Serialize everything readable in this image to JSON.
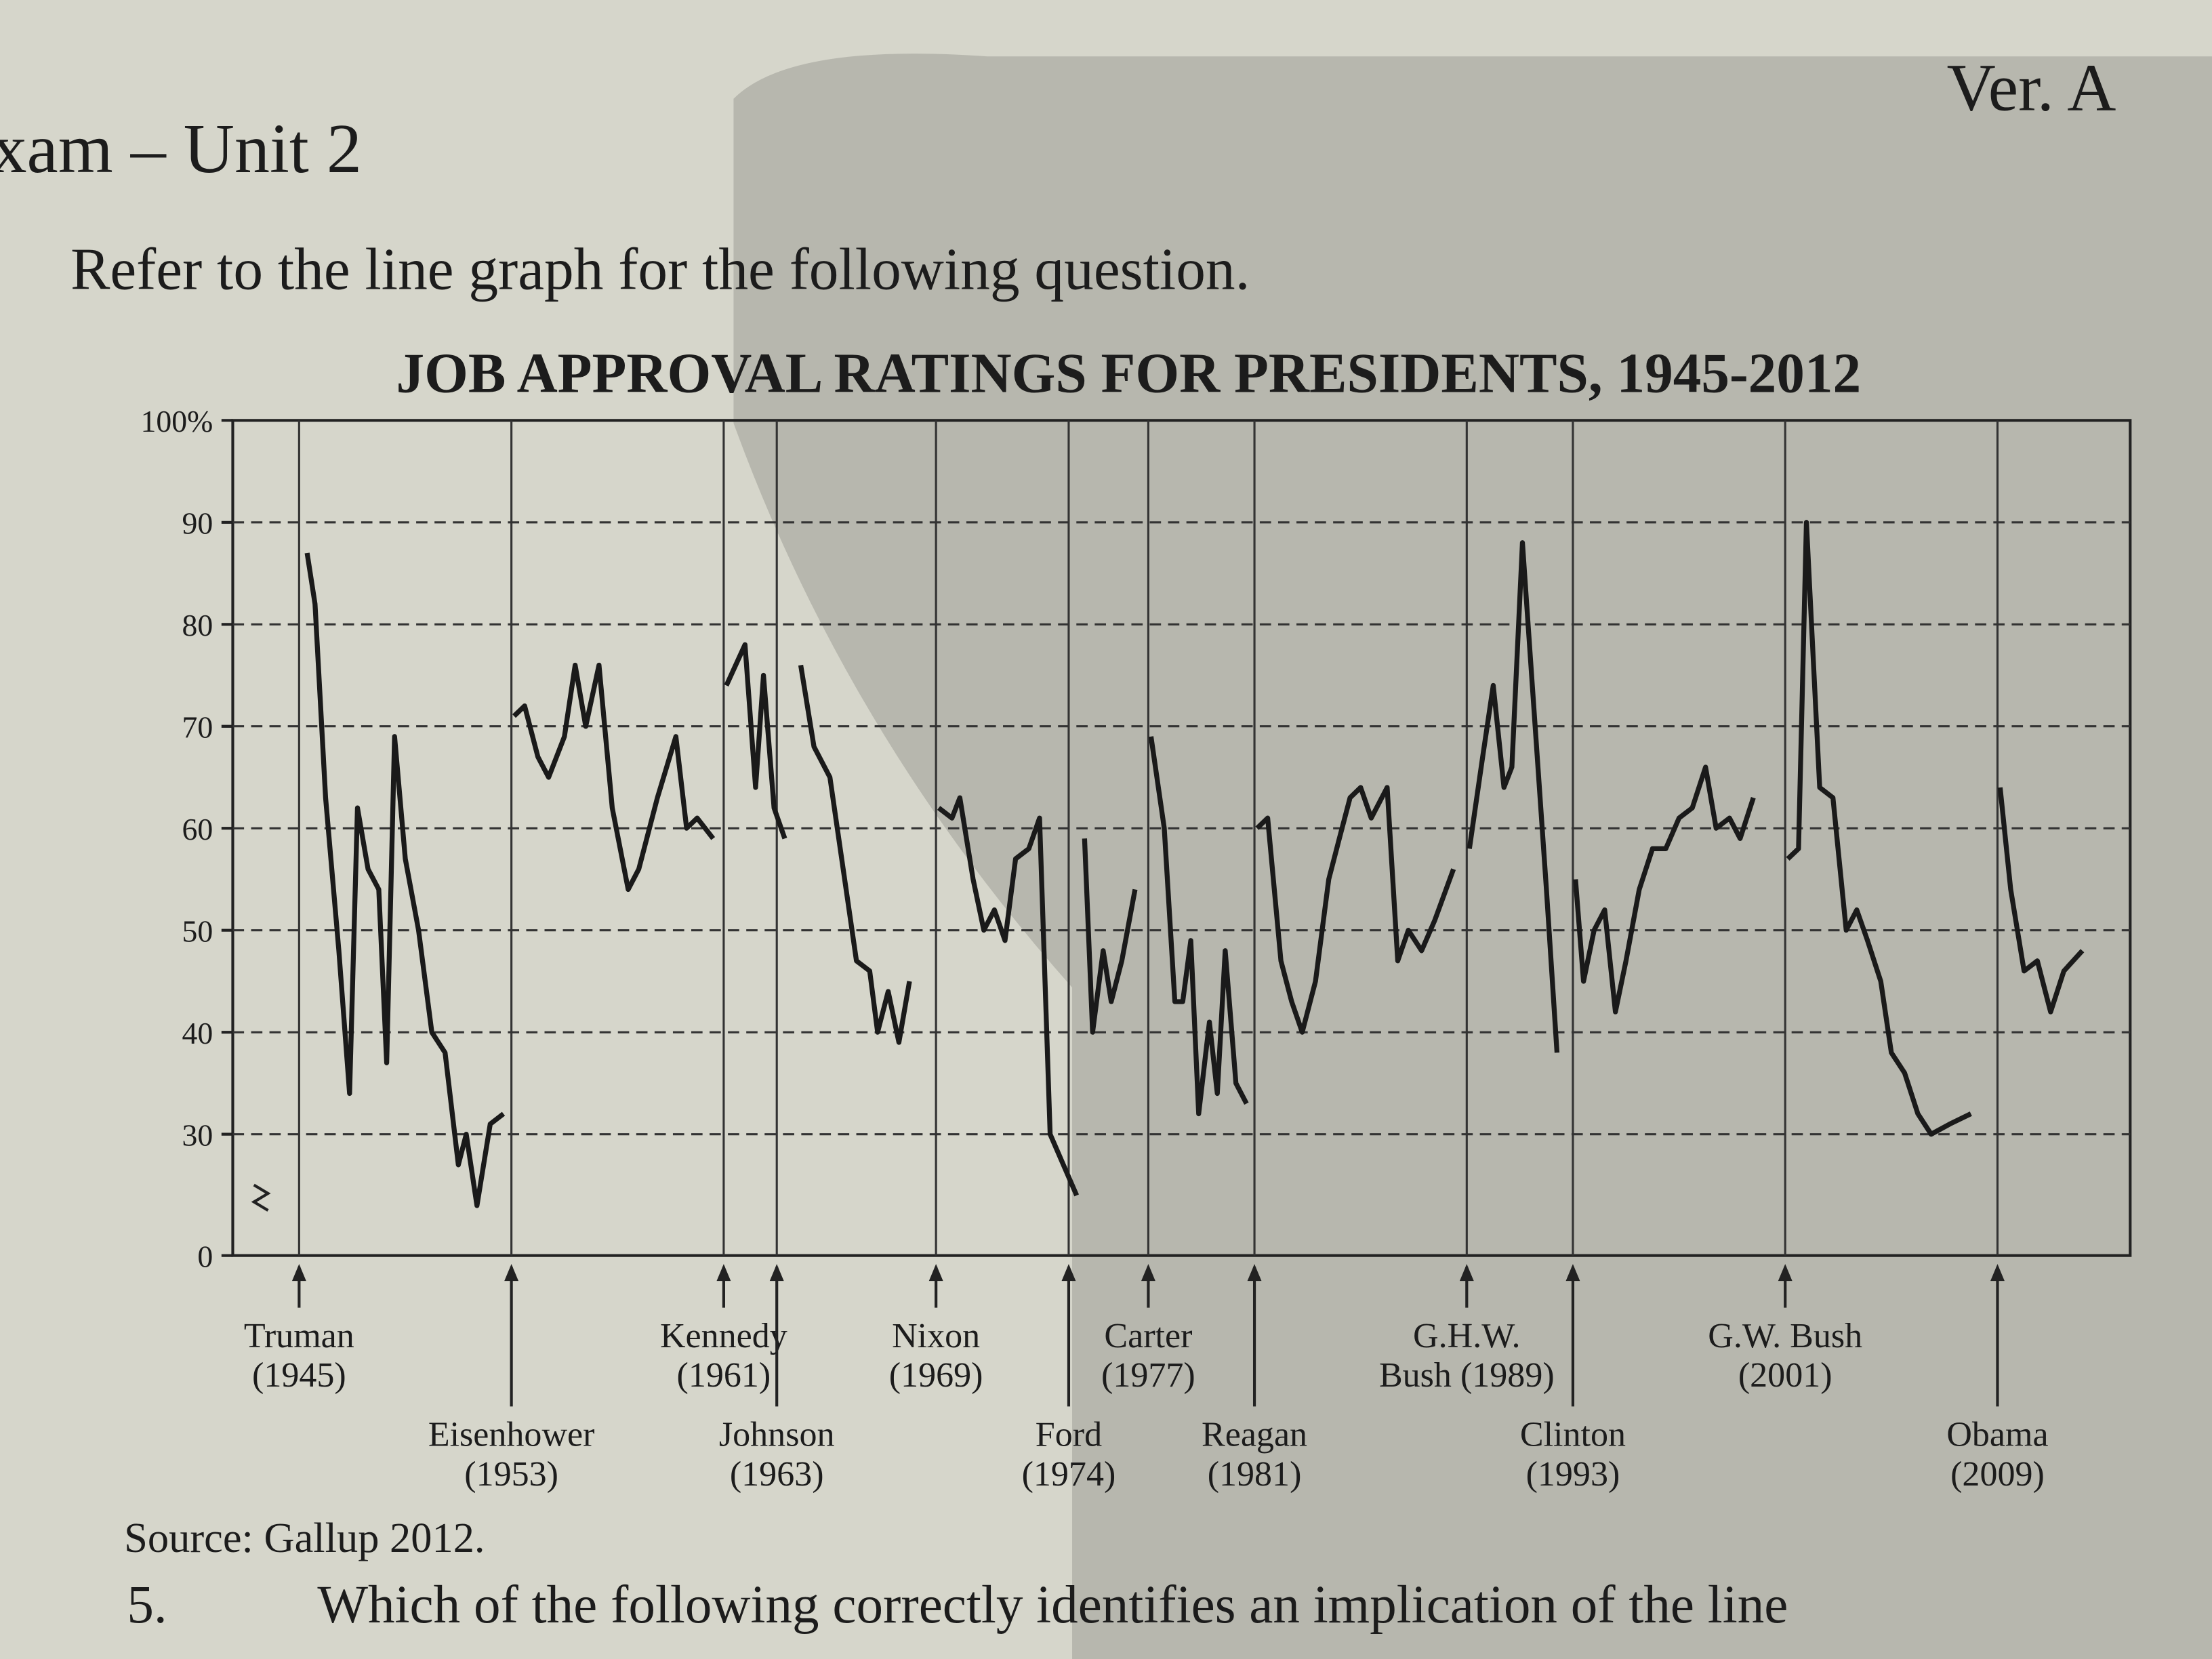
{
  "page": {
    "exam": "xam – Unit 2",
    "version": "Ver. A",
    "instruction": "Refer to the line graph for the following question.",
    "source": "Source: Gallup 2012.",
    "question_number": "5.",
    "question": "Which of the following correctly identifies an implication of the line"
  },
  "chart_data": {
    "type": "line",
    "title": "JOB APPROVAL RATINGS FOR PRESIDENTS, 1945-2012",
    "color": "#1a1a1a",
    "xlim": [
      1942.5,
      2014
    ],
    "ylim": [
      0,
      100
    ],
    "axis_break": [
      0,
      30
    ],
    "yticks": [
      0,
      30,
      40,
      50,
      60,
      70,
      80,
      90,
      {
        "value": 100,
        "label": "100%"
      }
    ],
    "grid": true,
    "x": [
      1945.3,
      1945.6,
      1946,
      1946.5,
      1946.9,
      1947.2,
      1947.6,
      1948,
      1948.3,
      1948.6,
      1949,
      1949.5,
      1950,
      1950.5,
      1951,
      1951.3,
      1951.7,
      1952.2,
      1952.7,
      null,
      1953.1,
      1953.5,
      1954,
      1954.4,
      1955,
      1955.4,
      1955.8,
      1956.3,
      1956.8,
      1957.4,
      1957.8,
      1958.5,
      1959.2,
      1959.6,
      1960,
      1960.6,
      null,
      1961.1,
      1961.8,
      1962.2,
      1962.5,
      1962.9,
      1963.3,
      null,
      1963.9,
      1964.4,
      1965,
      1965.5,
      1966,
      1966.5,
      1966.8,
      1967.2,
      1967.6,
      1968,
      null,
      1969.1,
      1969.6,
      1969.9,
      1970.4,
      1970.8,
      1971.2,
      1971.6,
      1972,
      1972.5,
      1972.9,
      1973.3,
      1973.8,
      1974.3,
      null,
      1974.6,
      1974.9,
      1975.3,
      1975.6,
      1976,
      1976.5,
      null,
      1977.1,
      1977.6,
      1978,
      1978.3,
      1978.6,
      1978.9,
      1979.3,
      1979.6,
      1979.9,
      1980.3,
      1980.7,
      null,
      1981.1,
      1981.5,
      1982,
      1982.4,
      1982.8,
      1983.3,
      1983.8,
      1984.2,
      1984.6,
      1985,
      1985.4,
      1986,
      1986.4,
      1986.8,
      1987.3,
      1987.8,
      1988.5,
      null,
      1989.1,
      1989.6,
      1990,
      1990.4,
      1990.7,
      1991.1,
      1991.5,
      1992,
      1992.4,
      null,
      1993.1,
      1993.4,
      1993.8,
      1994.2,
      1994.6,
      1995,
      1995.5,
      1996,
      1996.5,
      1997,
      1997.5,
      1998,
      1998.4,
      1998.9,
      1999.3,
      1999.8,
      null,
      2001.1,
      2001.5,
      2001.8,
      2002.3,
      2002.8,
      2003.3,
      2003.7,
      2004.1,
      2004.6,
      2005,
      2005.5,
      2006,
      2006.5,
      2007.2,
      2008,
      null,
      2009.1,
      2009.5,
      2010,
      2010.5,
      2011,
      2011.5,
      2012.2
    ],
    "values": [
      87,
      82,
      63,
      48,
      34,
      62,
      56,
      54,
      37,
      69,
      57,
      50,
      40,
      38,
      27,
      30,
      23,
      31,
      32,
      null,
      71,
      72,
      67,
      65,
      69,
      76,
      70,
      76,
      62,
      54,
      56,
      63,
      69,
      60,
      61,
      59,
      null,
      74,
      78,
      64,
      75,
      62,
      59,
      null,
      76,
      68,
      65,
      56,
      47,
      46,
      40,
      44,
      39,
      45,
      null,
      62,
      61,
      63,
      55,
      50,
      52,
      49,
      57,
      58,
      61,
      30,
      27,
      24,
      null,
      59,
      40,
      48,
      43,
      47,
      54,
      null,
      69,
      60,
      43,
      43,
      49,
      32,
      41,
      34,
      48,
      35,
      33,
      null,
      60,
      61,
      47,
      43,
      40,
      45,
      55,
      59,
      63,
      64,
      61,
      64,
      47,
      50,
      48,
      51,
      56,
      null,
      58,
      67,
      74,
      64,
      66,
      88,
      73,
      54,
      38,
      null,
      55,
      45,
      50,
      52,
      42,
      47,
      54,
      58,
      58,
      61,
      62,
      66,
      60,
      61,
      59,
      63,
      null,
      57,
      58,
      90,
      64,
      63,
      50,
      52,
      49,
      45,
      38,
      36,
      32,
      30,
      31,
      32,
      null,
      64,
      54,
      46,
      47,
      42,
      46,
      48
    ],
    "presidents": [
      {
        "name": "Truman",
        "date": "(1945)",
        "x": 1945
      },
      {
        "name": "Eisenhower",
        "date": "(1953)",
        "x": 1953
      },
      {
        "name": "Kennedy",
        "date": "(1961)",
        "x": 1961
      },
      {
        "name": "Johnson",
        "date": "(1963)",
        "x": 1963
      },
      {
        "name": "Nixon",
        "date": "(1969)",
        "x": 1969
      },
      {
        "name": "Ford",
        "date": "(1974)",
        "x": 1974
      },
      {
        "name": "Carter",
        "date": "(1977)",
        "x": 1977
      },
      {
        "name": "Reagan",
        "date": "(1981)",
        "x": 1981
      },
      {
        "name": "G.H.W.",
        "date": "Bush (1989)",
        "x": 1989
      },
      {
        "name": "Clinton",
        "date": "(1993)",
        "x": 1993
      },
      {
        "name": "G.W. Bush",
        "date": "(2001)",
        "x": 2001
      },
      {
        "name": "Obama",
        "date": "(2009)",
        "x": 2009
      }
    ]
  }
}
